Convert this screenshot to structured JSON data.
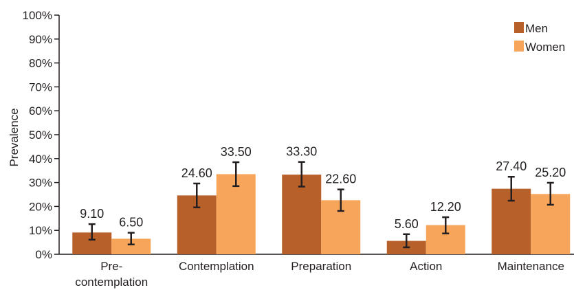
{
  "chart_data": {
    "type": "bar",
    "title": "",
    "xlabel": "",
    "ylabel": "Prevalence",
    "ylim": [
      0,
      100
    ],
    "yticks": [
      "0%",
      "10%",
      "20%",
      "30%",
      "40%",
      "50%",
      "60%",
      "70%",
      "80%",
      "90%",
      "100%"
    ],
    "ytick_values": [
      0,
      10,
      20,
      30,
      40,
      50,
      60,
      70,
      80,
      90,
      100
    ],
    "categories": [
      [
        "Pre-",
        "contemplation"
      ],
      [
        "Contemplation"
      ],
      [
        "Preparation"
      ],
      [
        "Action"
      ],
      [
        "Maintenance"
      ]
    ],
    "series": [
      {
        "name": "Men",
        "color": "#b8602a",
        "values": [
          9.1,
          24.6,
          33.3,
          5.6,
          27.4
        ],
        "labels": [
          "9.10",
          "24.60",
          "33.30",
          "5.60",
          "27.40"
        ],
        "error_low": [
          6.1,
          19.6,
          28.3,
          2.9,
          22.4
        ],
        "error_high": [
          12.6,
          29.6,
          38.6,
          8.4,
          32.4
        ]
      },
      {
        "name": "Women",
        "color": "#f6a55a",
        "values": [
          6.5,
          33.5,
          22.6,
          12.2,
          25.2
        ],
        "labels": [
          "6.50",
          "33.50",
          "22.60",
          "12.20",
          "25.20"
        ],
        "error_low": [
          4.1,
          28.5,
          18.1,
          8.7,
          20.7
        ],
        "error_high": [
          9.0,
          38.5,
          27.1,
          15.5,
          29.9
        ]
      }
    ],
    "grid": false,
    "legend_position": "top-right"
  }
}
